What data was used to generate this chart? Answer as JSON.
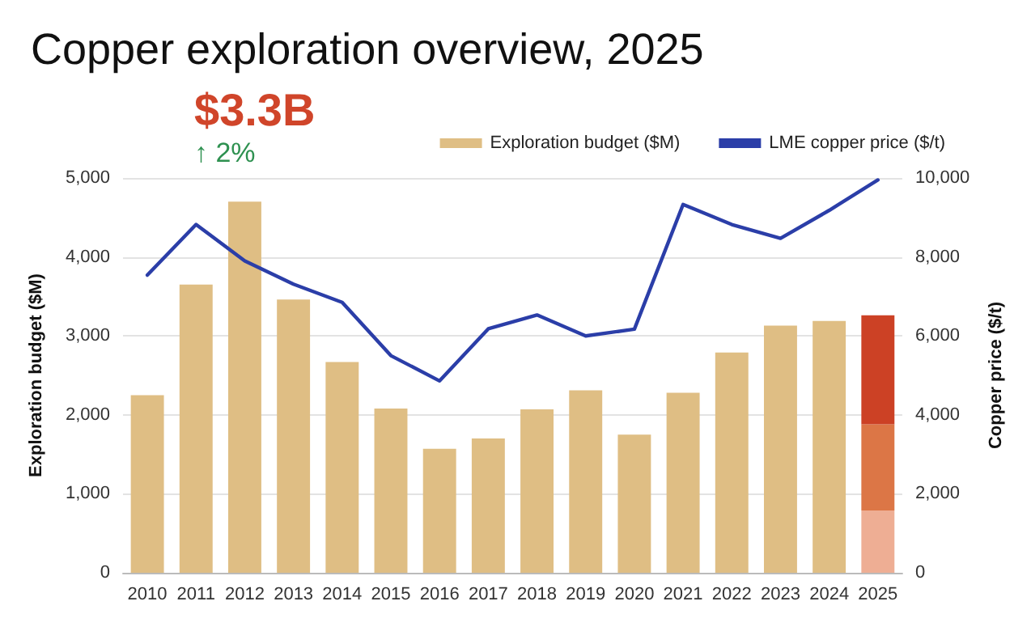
{
  "chart_data": {
    "type": "bar",
    "title": "Copper exploration overview, 2025",
    "ylabel": "Exploration budget ($M)",
    "y2label": "Copper price ($/t)",
    "annotations": [
      "$3.3B",
      "↑ 2%"
    ],
    "categories": [
      "2010",
      "2011",
      "2012",
      "2013",
      "2014",
      "2015",
      "2016",
      "2017",
      "2018",
      "2019",
      "2020",
      "2021",
      "2022",
      "2023",
      "2024",
      "2025"
    ],
    "stacked": true,
    "series": [
      {
        "name": "Exploration budget ($M)",
        "color": "#dfbe84",
        "colors": [
          "#dfbe84",
          "#dfbe84",
          "#dfbe84",
          "#dfbe84",
          "#dfbe84",
          "#dfbe84",
          "#dfbe84",
          "#dfbe84",
          "#dfbe84",
          "#dfbe84",
          "#dfbe84",
          "#dfbe84",
          "#dfbe84",
          "#dfbe84",
          "#dfbe84",
          "#eeae94"
        ],
        "values": [
          2250,
          3650,
          4700,
          3460,
          2670,
          2080,
          1570,
          1700,
          2070,
          2310,
          1750,
          2280,
          2790,
          3130,
          3190,
          790
        ]
      },
      {
        "color": "#dc7646",
        "values": [
          null,
          null,
          null,
          null,
          null,
          null,
          null,
          null,
          null,
          null,
          null,
          null,
          null,
          null,
          null,
          1090
        ]
      },
      {
        "color": "#cc4125",
        "values": [
          null,
          null,
          null,
          null,
          null,
          null,
          null,
          null,
          null,
          null,
          null,
          null,
          null,
          null,
          null,
          1380
        ]
      },
      {
        "name": "LME copper price ($/t)",
        "type": "line",
        "axis": "y2",
        "color": "#2b3ea8",
        "values": [
          7540,
          8820,
          7900,
          7310,
          6850,
          5500,
          4860,
          6180,
          6530,
          6000,
          6170,
          9330,
          8820,
          8470,
          9180,
          9950
        ]
      }
    ],
    "ylim": [
      0,
      5000
    ],
    "yticks": [
      0,
      {
        "value": 1000,
        "label": "1,000"
      },
      {
        "value": 2000,
        "label": "2,000"
      },
      {
        "value": 3000,
        "label": "3,000"
      },
      {
        "value": 4000,
        "label": "4,000"
      },
      {
        "value": 5000,
        "label": "5,000"
      }
    ],
    "y2lim": [
      0,
      10000
    ],
    "y2ticks": [
      0,
      {
        "value": 2000,
        "label": "2,000"
      },
      {
        "value": 4000,
        "label": "4,000"
      },
      {
        "value": 6000,
        "label": "6,000"
      },
      {
        "value": 8000,
        "label": "8,000"
      },
      {
        "value": 10000,
        "label": "10,000"
      }
    ],
    "grid": "y",
    "legend": "top right",
    "marker": "none",
    "line_style": "solid"
  }
}
